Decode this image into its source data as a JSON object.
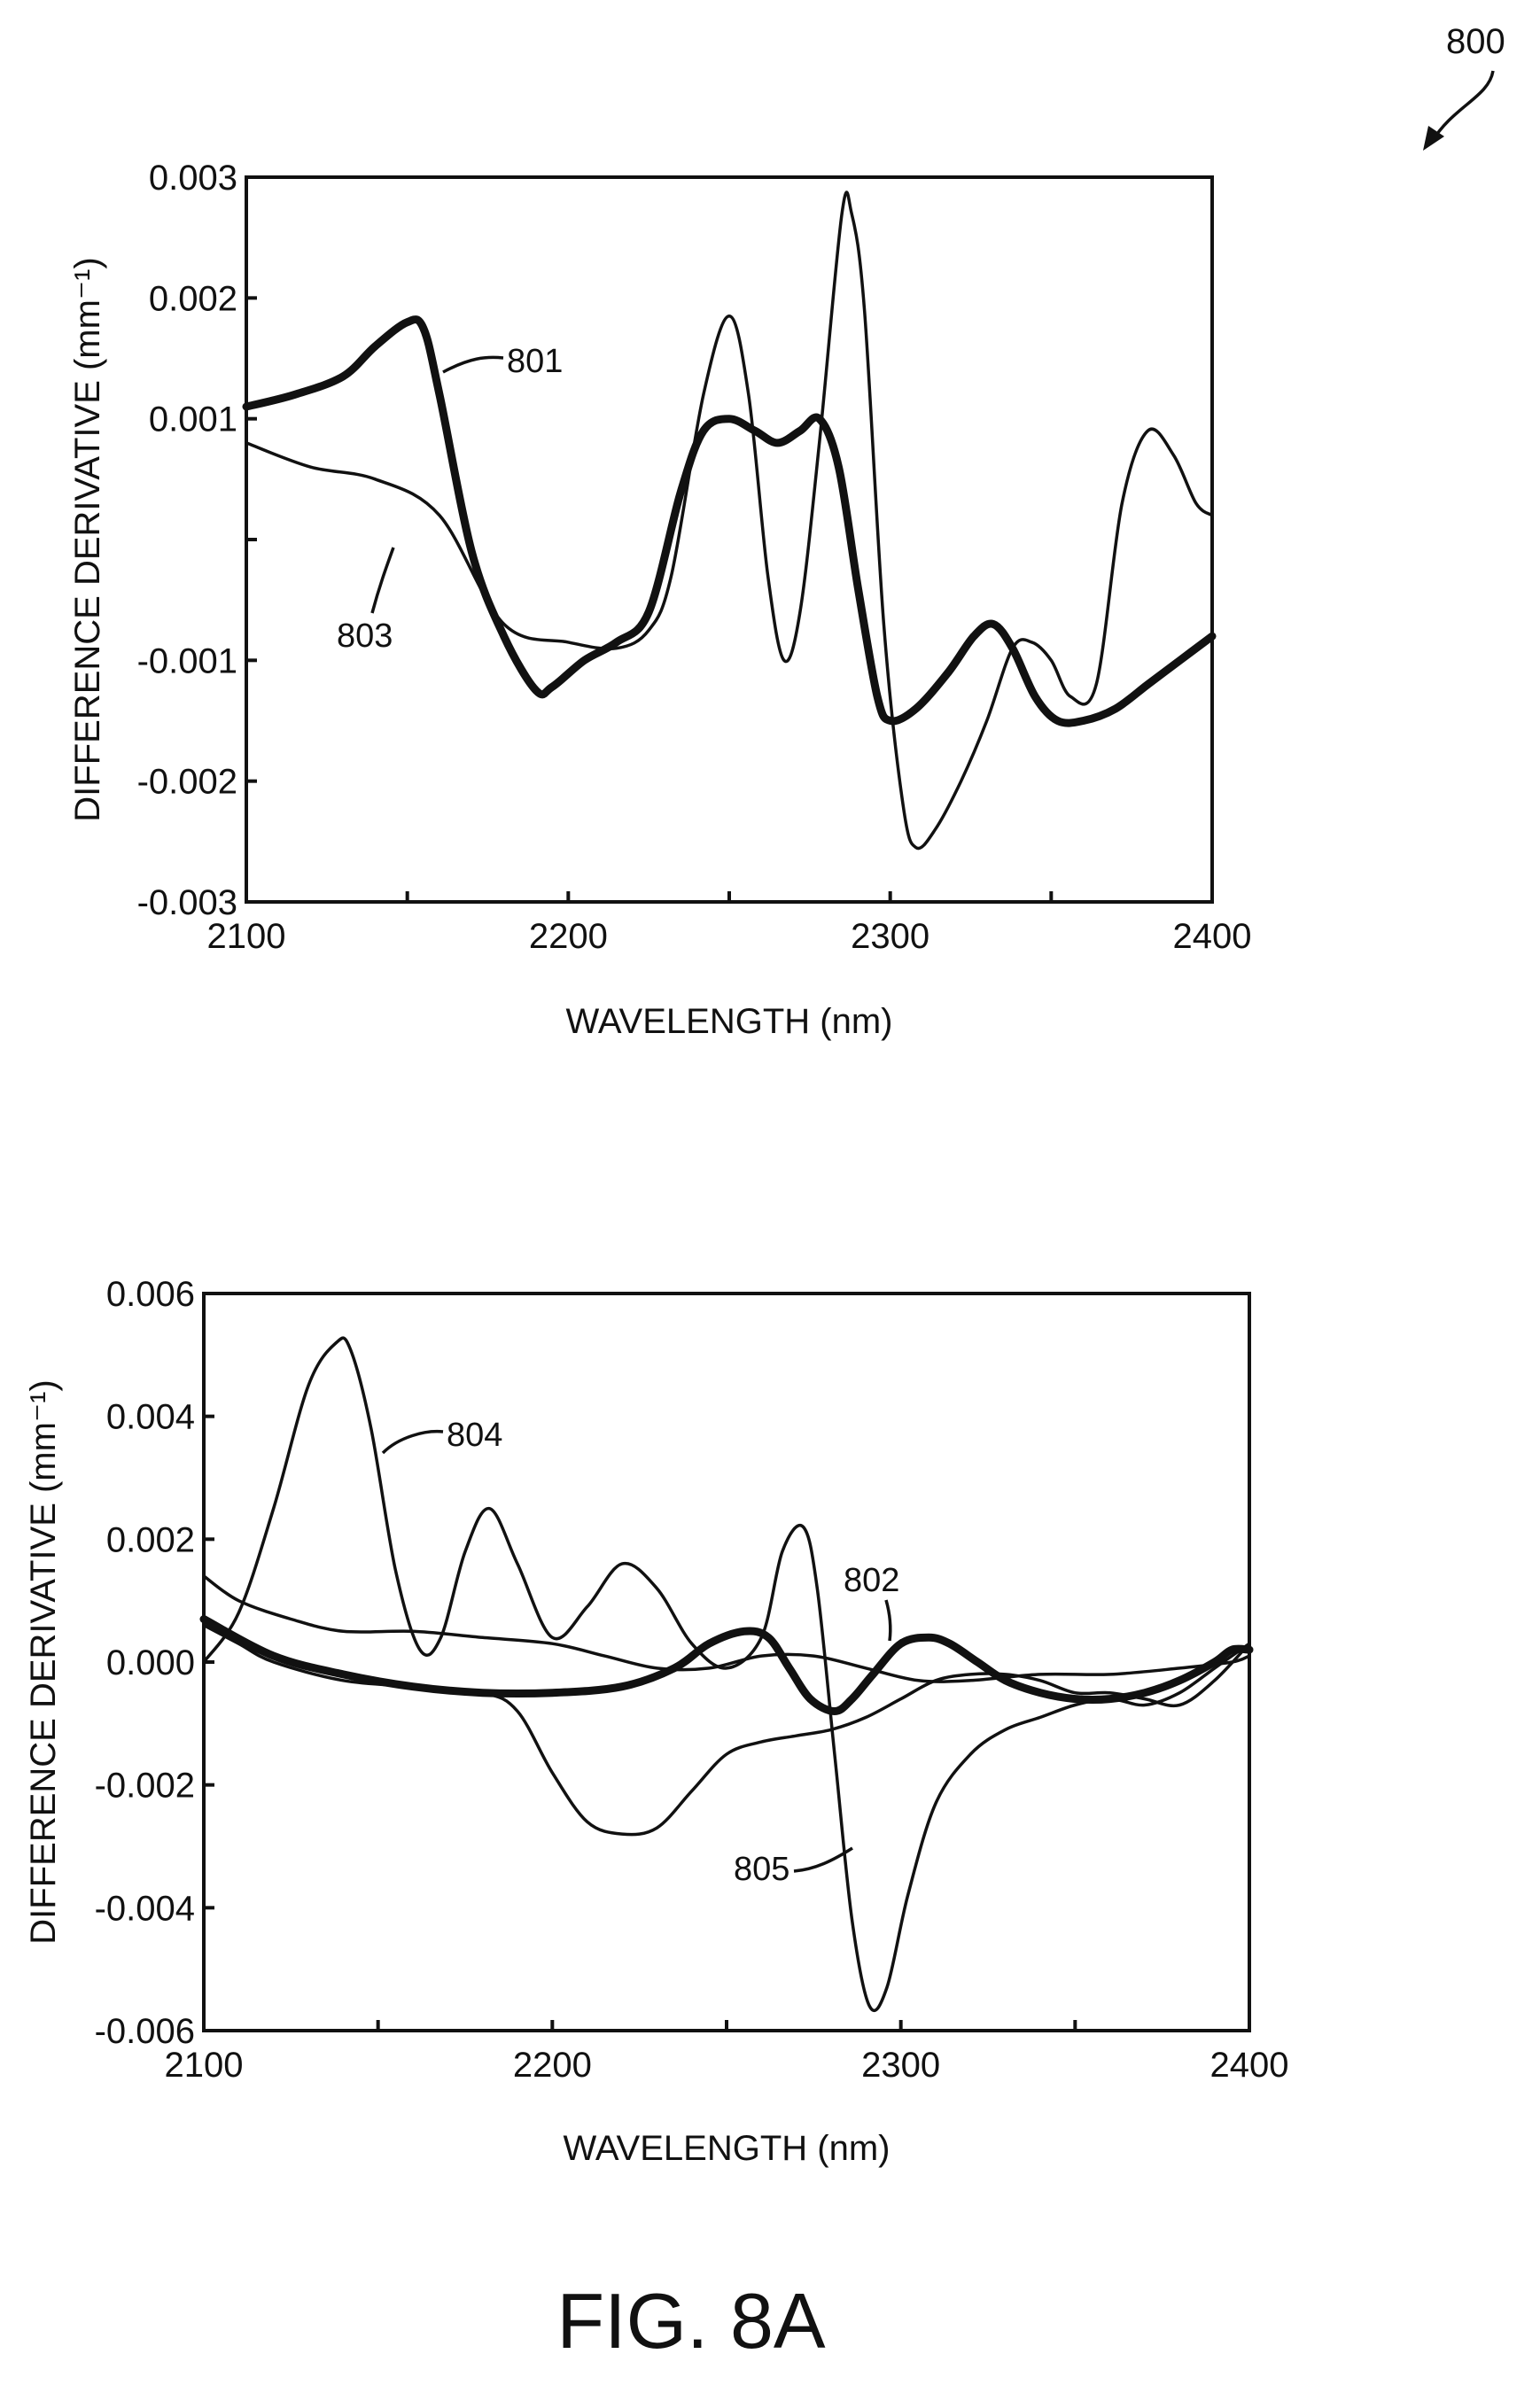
{
  "figure": {
    "ref_number": "800",
    "caption": "FIG. 8A"
  },
  "chart_data": [
    {
      "type": "line",
      "xlabel": "WAVELENGTH (nm)",
      "ylabel": "DIFFERENCE DERIVATIVE (mm⁻¹)",
      "xlim": [
        2100,
        2400
      ],
      "ylim": [
        -0.003,
        0.003
      ],
      "x_ticks": [
        2100,
        2200,
        2300,
        2400
      ],
      "x_tick_labels": [
        "2100",
        "2200",
        "2300",
        "2400"
      ],
      "y_ticks": [
        -0.003,
        -0.002,
        -0.001,
        0.001,
        0.002,
        0.003
      ],
      "y_tick_labels": [
        "-0.003",
        "-0.002",
        "-0.001",
        "0.001",
        "0.002",
        "0.003"
      ],
      "grid": false,
      "series": [
        {
          "name": "801",
          "color": "#111111",
          "weight": "thick",
          "x": [
            2100,
            2115,
            2130,
            2140,
            2150,
            2155,
            2160,
            2170,
            2180,
            2190,
            2195,
            2205,
            2215,
            2225,
            2235,
            2242,
            2250,
            2258,
            2265,
            2272,
            2278,
            2284,
            2290,
            2296,
            2300,
            2308,
            2318,
            2326,
            2332,
            2338,
            2345,
            2352,
            2360,
            2370,
            2380,
            2390,
            2400
          ],
          "y": [
            0.0011,
            0.0012,
            0.00135,
            0.0016,
            0.0018,
            0.00175,
            0.0012,
            -0.0001,
            -0.0008,
            -0.00125,
            -0.00122,
            -0.001,
            -0.00085,
            -0.0006,
            0.0004,
            0.0009,
            0.001,
            0.0009,
            0.0008,
            0.0009,
            0.001,
            0.0006,
            -0.0004,
            -0.0013,
            -0.0015,
            -0.0014,
            -0.0011,
            -0.0008,
            -0.0007,
            -0.0009,
            -0.0013,
            -0.0015,
            -0.0015,
            -0.0014,
            -0.0012,
            -0.001,
            -0.0008
          ]
        },
        {
          "name": "803",
          "color": "#111111",
          "weight": "thin",
          "x": [
            2100,
            2120,
            2140,
            2160,
            2180,
            2200,
            2215,
            2225,
            2232,
            2242,
            2250,
            2256,
            2262,
            2267,
            2272,
            2278,
            2285,
            2288,
            2292,
            2298,
            2304,
            2308,
            2314,
            2322,
            2330,
            2338,
            2344,
            2350,
            2356,
            2364,
            2372,
            2380,
            2388,
            2395,
            2400
          ],
          "y": [
            0.0008,
            0.0006,
            0.0005,
            0.0002,
            -0.0007,
            -0.00085,
            -0.0009,
            -0.00075,
            -0.0003,
            0.0012,
            0.00185,
            0.0012,
            -0.0003,
            -0.001,
            -0.0006,
            0.0008,
            0.0027,
            0.0027,
            0.0019,
            -0.0007,
            -0.0022,
            -0.00255,
            -0.0024,
            -0.002,
            -0.0015,
            -0.0009,
            -0.00085,
            -0.001,
            -0.0013,
            -0.0012,
            0.0003,
            0.0009,
            0.0007,
            0.0003,
            0.0002
          ]
        }
      ],
      "annotations": [
        {
          "text": "801",
          "series": "801"
        },
        {
          "text": "803",
          "series": "803"
        }
      ]
    },
    {
      "type": "line",
      "xlabel": "WAVELENGTH (nm)",
      "ylabel": "DIFFERENCE DERIVATIVE (mm⁻¹)",
      "xlim": [
        2100,
        2400
      ],
      "ylim": [
        -0.006,
        0.006
      ],
      "x_ticks": [
        2100,
        2200,
        2300,
        2400
      ],
      "x_tick_labels": [
        "2100",
        "2200",
        "2300",
        "2400"
      ],
      "y_ticks": [
        -0.006,
        -0.004,
        -0.002,
        0.0,
        0.002,
        0.004,
        0.006
      ],
      "y_tick_labels": [
        "-0.006",
        "-0.004",
        "-0.002",
        "0.000",
        "0.002",
        "0.004",
        "0.006"
      ],
      "grid": false,
      "series": [
        {
          "name": "804",
          "color": "#111111",
          "weight": "thin",
          "x": [
            2100,
            2110,
            2120,
            2130,
            2138,
            2142,
            2148,
            2155,
            2162,
            2168,
            2175,
            2182,
            2190,
            2200,
            2210,
            2220,
            2230,
            2240,
            2250,
            2260,
            2266,
            2272,
            2276,
            2281,
            2286,
            2291,
            2296,
            2302,
            2310,
            2320,
            2330,
            2340,
            2350,
            2360,
            2370,
            2380,
            2390,
            2400
          ],
          "y": [
            0.0,
            0.0008,
            0.0025,
            0.0045,
            0.0052,
            0.0051,
            0.0038,
            0.0015,
            0.0002,
            0.0004,
            0.0018,
            0.0025,
            0.0016,
            0.0004,
            0.0009,
            0.0016,
            0.0012,
            0.0003,
            -0.0001,
            0.0004,
            0.0018,
            0.0022,
            0.0012,
            -0.0015,
            -0.0042,
            -0.0056,
            -0.0053,
            -0.0038,
            -0.0023,
            -0.0015,
            -0.0011,
            -0.0009,
            -0.0007,
            -0.0006,
            -0.0007,
            -0.0005,
            -0.0001,
            0.0003
          ]
        },
        {
          "name": "802",
          "color": "#111111",
          "weight": "thick",
          "x": [
            2100,
            2120,
            2140,
            2160,
            2180,
            2200,
            2220,
            2235,
            2245,
            2255,
            2262,
            2268,
            2274,
            2281,
            2286,
            2292,
            2300,
            2308,
            2314,
            2322,
            2330,
            2340,
            2350,
            2360,
            2370,
            2380,
            2390,
            2395,
            2400
          ],
          "y": [
            0.0007,
            0.0001,
            -0.0002,
            -0.0004,
            -0.0005,
            -0.0005,
            -0.0004,
            -0.0001,
            0.0003,
            0.0005,
            0.0004,
            -0.0001,
            -0.0006,
            -0.0008,
            -0.0006,
            -0.0002,
            0.0003,
            0.0004,
            0.0003,
            0.0,
            -0.0003,
            -0.0005,
            -0.0006,
            -0.0006,
            -0.0005,
            -0.0003,
            0.0,
            0.0002,
            0.0002
          ]
        },
        {
          "name": "",
          "color": "#111111",
          "weight": "thin",
          "x": [
            2100,
            2110,
            2125,
            2140,
            2160,
            2180,
            2200,
            2215,
            2230,
            2245,
            2260,
            2275,
            2290,
            2305,
            2320,
            2340,
            2360,
            2380,
            2395,
            2400
          ],
          "y": [
            0.0014,
            0.001,
            0.0007,
            0.0005,
            0.0005,
            0.0004,
            0.0003,
            0.0001,
            -0.0001,
            -0.0001,
            0.0001,
            0.0001,
            -0.0001,
            -0.0003,
            -0.0003,
            -0.0002,
            -0.0002,
            -0.0001,
            0.0,
            0.0001
          ]
        },
        {
          "name": "805",
          "color": "#111111",
          "weight": "thin",
          "x": [
            2100,
            2110,
            2120,
            2140,
            2160,
            2180,
            2190,
            2200,
            2210,
            2220,
            2230,
            2240,
            2250,
            2260,
            2270,
            2280,
            2290,
            2300,
            2310,
            2320,
            2330,
            2340,
            2350,
            2360,
            2370,
            2380,
            2390,
            2400
          ],
          "y": [
            0.0006,
            0.0003,
            0.0,
            -0.0003,
            -0.0004,
            -0.0005,
            -0.0008,
            -0.0018,
            -0.0026,
            -0.0028,
            -0.0027,
            -0.0021,
            -0.0015,
            -0.0013,
            -0.0012,
            -0.0011,
            -0.0009,
            -0.0006,
            -0.0003,
            -0.0002,
            -0.0002,
            -0.0003,
            -0.0005,
            -0.0005,
            -0.0006,
            -0.0007,
            -0.0003,
            0.0003
          ]
        }
      ],
      "annotations": [
        {
          "text": "804",
          "series": "804"
        },
        {
          "text": "802",
          "series": "802"
        },
        {
          "text": "805",
          "series": "805"
        }
      ]
    }
  ]
}
